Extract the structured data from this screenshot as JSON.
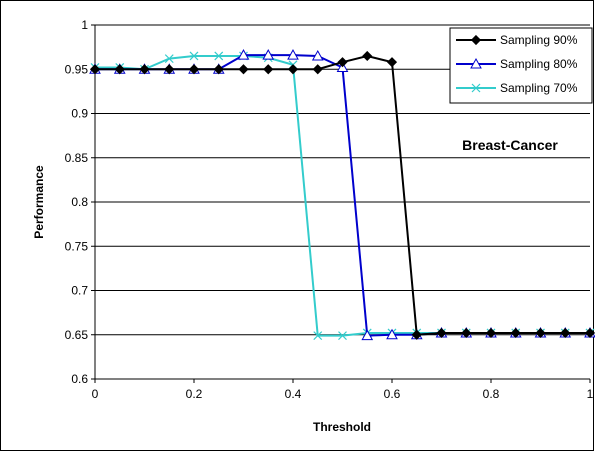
{
  "chart_data": {
    "type": "line",
    "title": "",
    "annotation": "Breast-Cancer",
    "xlabel": "Threshold",
    "ylabel": "Performance",
    "xlim": [
      0,
      1
    ],
    "ylim": [
      0.6,
      1
    ],
    "x_ticks": [
      "0",
      "0.2",
      "0.4",
      "0.6",
      "0.8",
      "1"
    ],
    "y_ticks": [
      "0.6",
      "0.65",
      "0.7",
      "0.75",
      "0.8",
      "0.85",
      "0.9",
      "0.95",
      "1"
    ],
    "grid": "horizontal",
    "legend_position": "top-right",
    "x": [
      0,
      0.05,
      0.1,
      0.15,
      0.2,
      0.25,
      0.3,
      0.35,
      0.4,
      0.45,
      0.5,
      0.55,
      0.6,
      0.65,
      0.7,
      0.75,
      0.8,
      0.85,
      0.9,
      0.95,
      1.0
    ],
    "series": [
      {
        "name": "Sampling 90%",
        "color": "#000000",
        "marker": "diamond",
        "values": [
          0.95,
          0.95,
          0.95,
          0.95,
          0.95,
          0.95,
          0.95,
          0.95,
          0.95,
          0.95,
          0.958,
          0.965,
          0.958,
          0.65,
          0.652,
          0.652,
          0.652,
          0.652,
          0.652,
          0.652,
          0.652
        ]
      },
      {
        "name": "Sampling 80%",
        "color": "#0000cc",
        "marker": "triangle",
        "values": [
          0.95,
          0.95,
          0.95,
          0.95,
          0.95,
          0.95,
          0.966,
          0.966,
          0.966,
          0.965,
          0.952,
          0.649,
          0.65,
          0.65,
          0.652,
          0.652,
          0.652,
          0.652,
          0.652,
          0.652,
          0.652
        ]
      },
      {
        "name": "Sampling 70%",
        "color": "#33cccc",
        "marker": "x",
        "values": [
          0.952,
          0.952,
          0.95,
          0.962,
          0.965,
          0.965,
          0.965,
          0.963,
          0.955,
          0.649,
          0.649,
          0.652,
          0.652,
          0.652,
          0.652,
          0.652,
          0.652,
          0.652,
          0.652,
          0.652,
          0.652
        ]
      }
    ]
  }
}
